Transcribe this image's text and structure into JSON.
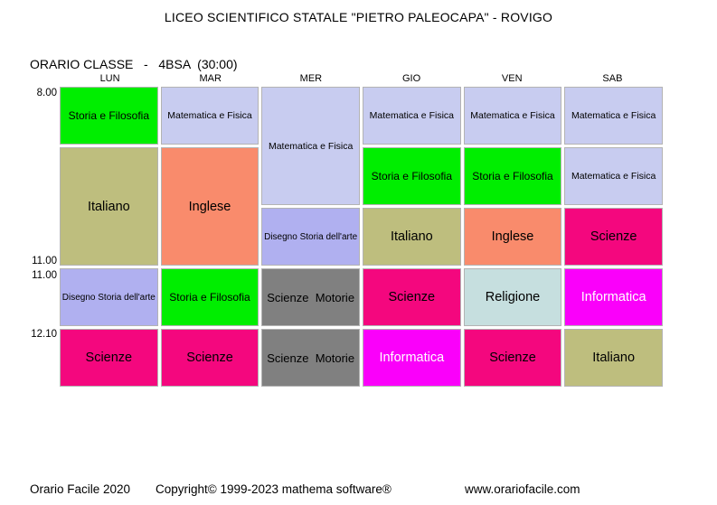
{
  "page": {
    "title": "LICEO SCIENTIFICO STATALE \"PIETRO PALEOCAPA\" - ROVIGO",
    "subtitle": "ORARIO CLASSE   -   4BSA  (30:00)"
  },
  "timetable": {
    "class_name": "4BSA",
    "total_hours": "30:00",
    "days": [
      "LUN",
      "MAR",
      "MER",
      "GIO",
      "VEN",
      "SAB"
    ],
    "time_labels": [
      "8.00",
      "11.00",
      "11.00",
      "12.10"
    ],
    "subject_colors": {
      "storia_e_filosofia": "#00ee00",
      "matematica_e_fisica": "#c8ccf0",
      "italiano": "#bebe7e",
      "inglese": "#f98b6c",
      "disegno_storia_dellarte": "#b0b0f0",
      "scienze": "#f4077e",
      "scienze_motorie": "#808080",
      "informatica": "#fa00fa",
      "religione": "#c6dfdf",
      "cell_border": "#b3b3b3"
    },
    "cells": [
      {
        "day": "LUN",
        "col": 1,
        "row": 1,
        "span": 1,
        "subject": "Storia e Filosofia",
        "bg": "#00ee00",
        "fg": "#000000",
        "size": "md"
      },
      {
        "day": "LUN",
        "col": 1,
        "row": 2,
        "span": 2,
        "subject": "Italiano",
        "bg": "#bebe7e",
        "fg": "#000000",
        "size": "lg"
      },
      {
        "day": "LUN",
        "col": 1,
        "row": 4,
        "span": 1,
        "subject": "Disegno Storia dell'arte",
        "bg": "#b0b0f0",
        "fg": "#000000",
        "size": "xs"
      },
      {
        "day": "LUN",
        "col": 1,
        "row": 5,
        "span": 1,
        "subject": "Scienze",
        "bg": "#f4077e",
        "fg": "#000000",
        "size": "lg"
      },
      {
        "day": "MAR",
        "col": 2,
        "row": 1,
        "span": 1,
        "subject": "Matematica e Fisica",
        "bg": "#c8ccf0",
        "fg": "#000000",
        "size": "sm"
      },
      {
        "day": "MAR",
        "col": 2,
        "row": 2,
        "span": 2,
        "subject": "Inglese",
        "bg": "#f98b6c",
        "fg": "#000000",
        "size": "lg"
      },
      {
        "day": "MAR",
        "col": 2,
        "row": 4,
        "span": 1,
        "subject": "Storia e Filosofia",
        "bg": "#00ee00",
        "fg": "#000000",
        "size": "md"
      },
      {
        "day": "MAR",
        "col": 2,
        "row": 5,
        "span": 1,
        "subject": "Scienze",
        "bg": "#f4077e",
        "fg": "#000000",
        "size": "lg"
      },
      {
        "day": "MER",
        "col": 3,
        "row": 1,
        "span": 2,
        "subject": "Matematica e Fisica",
        "bg": "#c8ccf0",
        "fg": "#000000",
        "size": "sm"
      },
      {
        "day": "MER",
        "col": 3,
        "row": 3,
        "span": 1,
        "subject": "Disegno Storia dell'arte",
        "bg": "#b0b0f0",
        "fg": "#000000",
        "size": "xs"
      },
      {
        "day": "MER",
        "col": 3,
        "row": 4,
        "span": 1,
        "subject": "Scienze  Motorie",
        "bg": "#808080",
        "fg": "#000000",
        "size": "ml"
      },
      {
        "day": "MER",
        "col": 3,
        "row": 5,
        "span": 1,
        "subject": "Scienze  Motorie",
        "bg": "#808080",
        "fg": "#000000",
        "size": "ml"
      },
      {
        "day": "GIO",
        "col": 4,
        "row": 1,
        "span": 1,
        "subject": "Matematica e Fisica",
        "bg": "#c8ccf0",
        "fg": "#000000",
        "size": "sm"
      },
      {
        "day": "GIO",
        "col": 4,
        "row": 2,
        "span": 1,
        "subject": "Storia e Filosofia",
        "bg": "#00ee00",
        "fg": "#000000",
        "size": "md"
      },
      {
        "day": "GIO",
        "col": 4,
        "row": 3,
        "span": 1,
        "subject": "Italiano",
        "bg": "#bebe7e",
        "fg": "#000000",
        "size": "lg"
      },
      {
        "day": "GIO",
        "col": 4,
        "row": 4,
        "span": 1,
        "subject": "Scienze",
        "bg": "#f4077e",
        "fg": "#000000",
        "size": "lg"
      },
      {
        "day": "GIO",
        "col": 4,
        "row": 5,
        "span": 1,
        "subject": "Informatica",
        "bg": "#fa00fa",
        "fg": "#ffffff",
        "size": "lg"
      },
      {
        "day": "VEN",
        "col": 5,
        "row": 1,
        "span": 1,
        "subject": "Matematica e Fisica",
        "bg": "#c8ccf0",
        "fg": "#000000",
        "size": "sm"
      },
      {
        "day": "VEN",
        "col": 5,
        "row": 2,
        "span": 1,
        "subject": "Storia e Filosofia",
        "bg": "#00ee00",
        "fg": "#000000",
        "size": "md"
      },
      {
        "day": "VEN",
        "col": 5,
        "row": 3,
        "span": 1,
        "subject": "Inglese",
        "bg": "#f98b6c",
        "fg": "#000000",
        "size": "lg"
      },
      {
        "day": "VEN",
        "col": 5,
        "row": 4,
        "span": 1,
        "subject": "Religione",
        "bg": "#c6dfdf",
        "fg": "#000000",
        "size": "lg"
      },
      {
        "day": "VEN",
        "col": 5,
        "row": 5,
        "span": 1,
        "subject": "Scienze",
        "bg": "#f4077e",
        "fg": "#000000",
        "size": "lg"
      },
      {
        "day": "SAB",
        "col": 6,
        "row": 1,
        "span": 1,
        "subject": "Matematica e Fisica",
        "bg": "#c8ccf0",
        "fg": "#000000",
        "size": "sm"
      },
      {
        "day": "SAB",
        "col": 6,
        "row": 2,
        "span": 1,
        "subject": "Matematica e Fisica",
        "bg": "#c8ccf0",
        "fg": "#000000",
        "size": "sm"
      },
      {
        "day": "SAB",
        "col": 6,
        "row": 3,
        "span": 1,
        "subject": "Scienze",
        "bg": "#f4077e",
        "fg": "#000000",
        "size": "lg"
      },
      {
        "day": "SAB",
        "col": 6,
        "row": 4,
        "span": 1,
        "subject": "Informatica",
        "bg": "#fa00fa",
        "fg": "#ffffff",
        "size": "lg"
      },
      {
        "day": "SAB",
        "col": 6,
        "row": 5,
        "span": 1,
        "subject": "Italiano",
        "bg": "#bebe7e",
        "fg": "#000000",
        "size": "lg"
      }
    ]
  },
  "footer": {
    "app": "Orario Facile 2020",
    "copyright": "Copyright© 1999-2023 mathema software®",
    "website": "www.orariofacile.com"
  }
}
